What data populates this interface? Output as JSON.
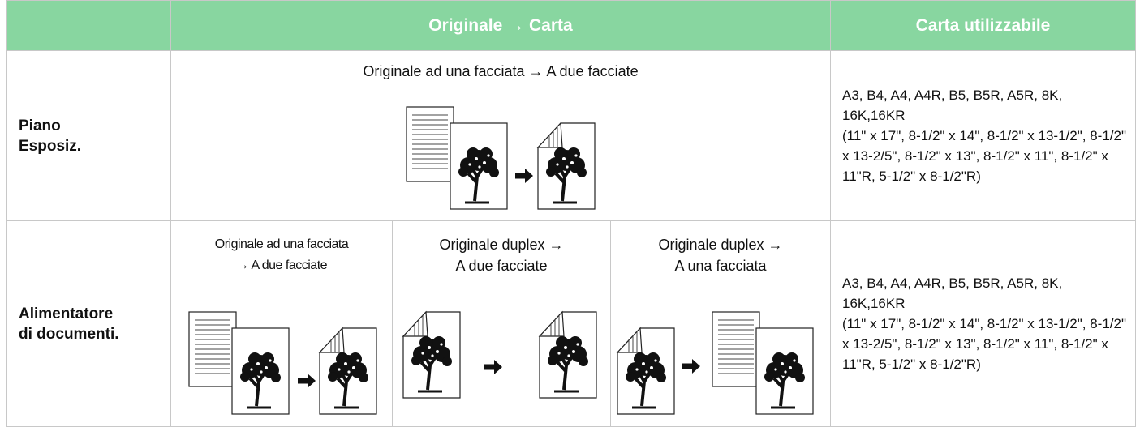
{
  "header": {
    "col_original": "Originale → Carta",
    "col_paper": "Carta utilizzabile"
  },
  "rows": [
    {
      "label": [
        "Piano",
        "Esposiz."
      ],
      "modes": [
        {
          "lines": [
            "Originale ad una facciata → A due facciate"
          ]
        }
      ],
      "paper": [
        "A3, B4, A4, A4R, B5, B5R, A5R, 8K, 16K,16KR",
        "(11\" x 17\", 8-1/2\" x 14\", 8-1/2\" x 13-1/2\", 8-1/2\" x 13-2/5\", 8-1/2\" x 13\", 8-1/2\" x 11\", 8-1/2\" x 11\"R, 5-1/2\" x 8-1/2\"R)"
      ]
    },
    {
      "label": [
        "Alimentatore",
        "di documenti."
      ],
      "modes": [
        {
          "lines": [
            "Originale ad una facciata",
            "→ A due facciate"
          ]
        },
        {
          "lines": [
            "Originale duplex →",
            "A due facciate"
          ]
        },
        {
          "lines": [
            "Originale duplex →",
            "A una facciata"
          ]
        }
      ],
      "paper": [
        "A3, B4, A4, A4R, B5, B5R, A5R, 8K, 16K,16KR",
        "(11\" x 17\", 8-1/2\" x 14\", 8-1/2\" x 13-1/2\", 8-1/2\" x 13-2/5\", 8-1/2\" x 13\", 8-1/2\" x 11\", 8-1/2\" x 11\"R, 5-1/2\" x 8-1/2\"R)"
      ]
    }
  ]
}
